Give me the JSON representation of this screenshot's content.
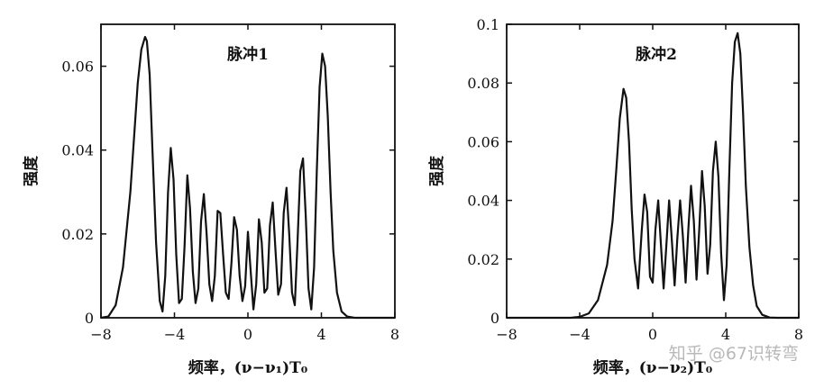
{
  "chart_data": [
    {
      "type": "line",
      "title": "脉冲1",
      "xlabel": "频率，(ν−ν₁)T₀",
      "ylabel": "强度",
      "xlim": [
        -8,
        8
      ],
      "ylim": [
        0,
        0.07
      ],
      "xticks": [
        -8,
        -4,
        0,
        4,
        8
      ],
      "xtick_labels": [
        "−8",
        "−4",
        "0",
        "4",
        "8"
      ],
      "yticks": [
        0,
        0.02,
        0.04,
        0.06
      ],
      "ytick_labels": [
        "0",
        "0.02",
        "0.04",
        "0.06"
      ],
      "grid": false,
      "series": [
        {
          "x": [
            -8.0,
            -7.6,
            -7.2,
            -6.8,
            -6.4,
            -6.2,
            -6.0,
            -5.8,
            -5.6,
            -5.5,
            -5.35,
            -5.2,
            -5.0,
            -4.8,
            -4.65,
            -4.5,
            -4.35,
            -4.2,
            -4.05,
            -3.9,
            -3.75,
            -3.6,
            -3.45,
            -3.3,
            -3.15,
            -3.0,
            -2.85,
            -2.7,
            -2.55,
            -2.4,
            -2.25,
            -2.1,
            -1.95,
            -1.8,
            -1.65,
            -1.5,
            -1.35,
            -1.2,
            -1.05,
            -0.9,
            -0.75,
            -0.6,
            -0.45,
            -0.3,
            -0.15,
            0.0,
            0.15,
            0.3,
            0.45,
            0.6,
            0.75,
            0.9,
            1.05,
            1.2,
            1.35,
            1.5,
            1.65,
            1.8,
            1.95,
            2.1,
            2.25,
            2.4,
            2.55,
            2.7,
            2.85,
            3.0,
            3.15,
            3.3,
            3.45,
            3.6,
            3.75,
            3.9,
            4.05,
            4.2,
            4.35,
            4.5,
            4.65,
            4.85,
            5.1,
            5.4,
            5.8,
            6.2,
            6.6,
            7.0,
            7.5,
            8.0
          ],
          "y": [
            0.0,
            0.0003,
            0.003,
            0.012,
            0.03,
            0.043,
            0.056,
            0.064,
            0.067,
            0.066,
            0.058,
            0.04,
            0.018,
            0.004,
            0.0015,
            0.01,
            0.03,
            0.0405,
            0.033,
            0.015,
            0.0035,
            0.0045,
            0.017,
            0.034,
            0.026,
            0.011,
            0.0035,
            0.007,
            0.023,
            0.0295,
            0.02,
            0.008,
            0.004,
            0.01,
            0.0255,
            0.025,
            0.015,
            0.006,
            0.0045,
            0.013,
            0.024,
            0.021,
            0.01,
            0.004,
            0.0075,
            0.0205,
            0.011,
            0.002,
            0.008,
            0.0235,
            0.018,
            0.006,
            0.007,
            0.022,
            0.0275,
            0.016,
            0.0055,
            0.008,
            0.025,
            0.031,
            0.02,
            0.006,
            0.003,
            0.018,
            0.035,
            0.038,
            0.024,
            0.007,
            0.002,
            0.012,
            0.035,
            0.055,
            0.063,
            0.06,
            0.048,
            0.03,
            0.016,
            0.006,
            0.0015,
            0.0003,
            0.0,
            0.0,
            0.0,
            0.0,
            0.0,
            0.0
          ]
        }
      ]
    },
    {
      "type": "line",
      "title": "脉冲2",
      "xlabel": "频率，(ν−ν₂)T₀",
      "ylabel": "强度",
      "xlim": [
        -8,
        8
      ],
      "ylim": [
        0,
        0.1
      ],
      "xticks": [
        -8,
        -4,
        0,
        4,
        8
      ],
      "xtick_labels": [
        "−8",
        "−4",
        "0",
        "4",
        "8"
      ],
      "yticks": [
        0,
        0.02,
        0.04,
        0.06,
        0.08,
        0.1
      ],
      "ytick_labels": [
        "0",
        "0.02",
        "0.04",
        "0.06",
        "0.08",
        "0.1"
      ],
      "grid": false,
      "series": [
        {
          "x": [
            -8.0,
            -6.0,
            -4.5,
            -4.0,
            -3.5,
            -3.0,
            -2.5,
            -2.2,
            -2.0,
            -1.8,
            -1.6,
            -1.45,
            -1.3,
            -1.15,
            -1.0,
            -0.8,
            -0.6,
            -0.45,
            -0.3,
            -0.15,
            0.0,
            0.15,
            0.3,
            0.45,
            0.6,
            0.75,
            0.9,
            1.05,
            1.2,
            1.35,
            1.5,
            1.65,
            1.8,
            1.95,
            2.1,
            2.25,
            2.4,
            2.55,
            2.7,
            2.85,
            3.0,
            3.15,
            3.3,
            3.45,
            3.6,
            3.75,
            3.9,
            4.05,
            4.2,
            4.35,
            4.5,
            4.65,
            4.8,
            4.95,
            5.1,
            5.3,
            5.5,
            5.7,
            6.0,
            6.4,
            6.8,
            7.4,
            8.0
          ],
          "y": [
            0.0,
            0.0,
            0.0,
            0.0003,
            0.0015,
            0.006,
            0.018,
            0.033,
            0.05,
            0.068,
            0.078,
            0.075,
            0.06,
            0.037,
            0.02,
            0.01,
            0.03,
            0.042,
            0.036,
            0.014,
            0.012,
            0.03,
            0.04,
            0.025,
            0.01,
            0.025,
            0.04,
            0.026,
            0.011,
            0.027,
            0.04,
            0.028,
            0.012,
            0.03,
            0.045,
            0.033,
            0.013,
            0.03,
            0.05,
            0.038,
            0.015,
            0.025,
            0.05,
            0.06,
            0.048,
            0.022,
            0.006,
            0.018,
            0.05,
            0.08,
            0.094,
            0.097,
            0.09,
            0.07,
            0.045,
            0.024,
            0.011,
            0.004,
            0.001,
            0.0001,
            0.0,
            0.0,
            0.0
          ]
        }
      ]
    }
  ],
  "watermark": "知乎 @67识转弯"
}
